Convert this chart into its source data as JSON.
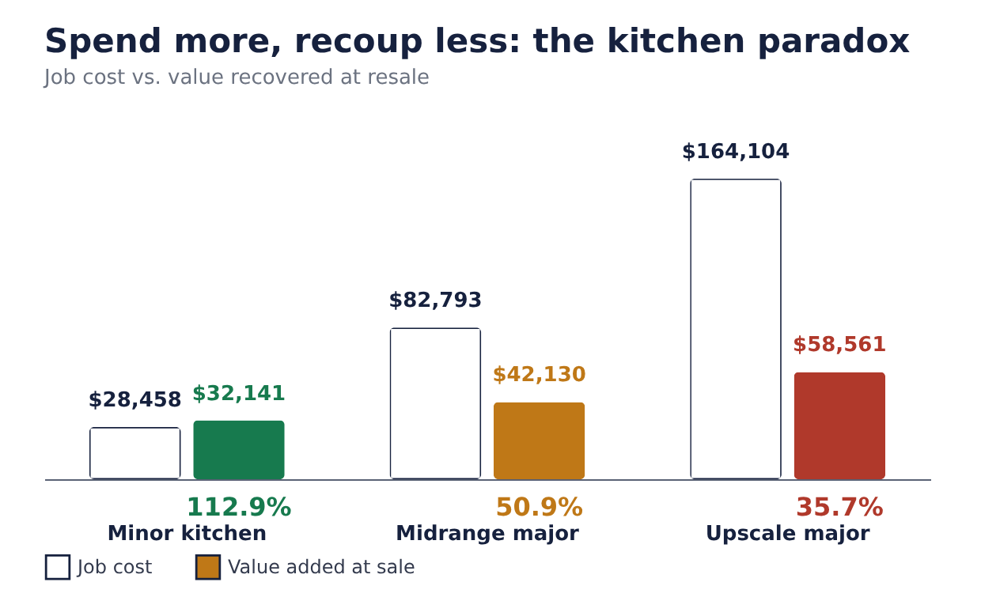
{
  "chart_data": {
    "type": "bar",
    "title": "Spend more, recoup less: the kitchen paradox",
    "subtitle": "Job cost vs. value recovered at resale",
    "categories": [
      "Minor kitchen",
      "Midrange major",
      "Upscale major"
    ],
    "series": [
      {
        "name": "Job cost",
        "color": "#ffffff",
        "values": [
          28458,
          82793,
          164104
        ],
        "value_labels": [
          "$28,458",
          "$82,793",
          "$164,104"
        ]
      },
      {
        "name": "Value added at sale",
        "colors": [
          "#177a4e",
          "#bf7817",
          "#b0392b"
        ],
        "values": [
          32141,
          42130,
          58561
        ],
        "value_labels": [
          "$32,141",
          "$42,130",
          "$58,561"
        ]
      }
    ],
    "annotations": [
      "112.9%",
      "50.9%",
      "35.7%"
    ],
    "legend": "bottom left",
    "grid": false
  }
}
